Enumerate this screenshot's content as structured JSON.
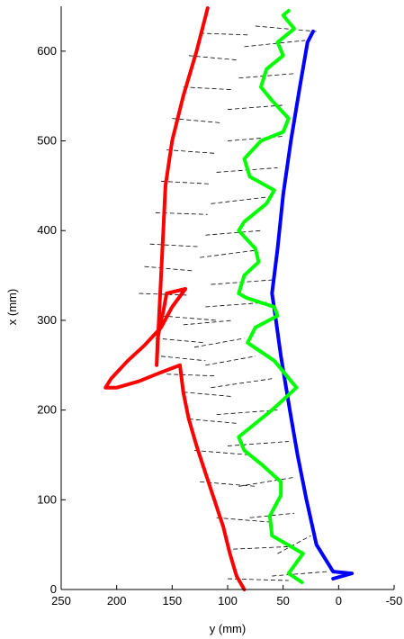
{
  "chart_data": {
    "type": "line",
    "title": "",
    "xlabel": "y (mm)",
    "ylabel": "x (mm)",
    "xlim": [
      250,
      -50
    ],
    "ylim": [
      0,
      650
    ],
    "x_reversed": true,
    "grid": false,
    "legend": "none",
    "xticks": [
      250,
      200,
      150,
      100,
      50,
      0,
      -50
    ],
    "yticks": [
      0,
      100,
      200,
      300,
      400,
      500,
      600
    ],
    "series": [
      {
        "color": "#ff0000",
        "points": [
          [
            85,
            0
          ],
          [
            92,
            15
          ],
          [
            98,
            40
          ],
          [
            104,
            70
          ],
          [
            112,
            100
          ],
          [
            120,
            130
          ],
          [
            128,
            160
          ],
          [
            135,
            190
          ],
          [
            140,
            220
          ],
          [
            143,
            250
          ],
          [
            160,
            242
          ],
          [
            180,
            232
          ],
          [
            200,
            225
          ],
          [
            210,
            225
          ],
          [
            205,
            235
          ],
          [
            190,
            255
          ],
          [
            175,
            272
          ],
          [
            160,
            292
          ],
          [
            150,
            315
          ],
          [
            138,
            335
          ],
          [
            155,
            330
          ],
          [
            158,
            310
          ],
          [
            160,
            300
          ],
          [
            163,
            280
          ],
          [
            164,
            250
          ],
          [
            158,
            400
          ],
          [
            156,
            450
          ],
          [
            150,
            500
          ],
          [
            140,
            550
          ],
          [
            128,
            600
          ],
          [
            118,
            648
          ]
        ]
      },
      {
        "color": "#0000ff",
        "points": [
          [
            5,
            12
          ],
          [
            -12,
            18
          ],
          [
            5,
            20
          ],
          [
            20,
            50
          ],
          [
            29,
            100
          ],
          [
            37,
            150
          ],
          [
            44,
            200
          ],
          [
            52,
            260
          ],
          [
            57,
            305
          ],
          [
            60,
            330
          ],
          [
            55,
            380
          ],
          [
            50,
            440
          ],
          [
            43,
            500
          ],
          [
            35,
            560
          ],
          [
            28,
            610
          ],
          [
            23,
            622
          ]
        ]
      },
      {
        "color": "#00ff00",
        "points": [
          [
            33,
            8
          ],
          [
            45,
            18
          ],
          [
            38,
            30
          ],
          [
            32,
            40
          ],
          [
            60,
            60
          ],
          [
            62,
            82
          ],
          [
            52,
            105
          ],
          [
            52,
            120
          ],
          [
            70,
            140
          ],
          [
            85,
            155
          ],
          [
            90,
            170
          ],
          [
            60,
            200
          ],
          [
            38,
            225
          ],
          [
            58,
            255
          ],
          [
            82,
            275
          ],
          [
            75,
            292
          ],
          [
            55,
            305
          ],
          [
            58,
            315
          ],
          [
            83,
            325
          ],
          [
            90,
            330
          ],
          [
            85,
            350
          ],
          [
            72,
            365
          ],
          [
            75,
            380
          ],
          [
            90,
            400
          ],
          [
            85,
            410
          ],
          [
            65,
            430
          ],
          [
            58,
            445
          ],
          [
            80,
            460
          ],
          [
            85,
            480
          ],
          [
            70,
            500
          ],
          [
            50,
            510
          ],
          [
            45,
            525
          ],
          [
            60,
            545
          ],
          [
            70,
            560
          ],
          [
            65,
            580
          ],
          [
            50,
            595
          ],
          [
            55,
            610
          ],
          [
            40,
            625
          ],
          [
            50,
            640
          ],
          [
            45,
            645
          ]
        ]
      }
    ],
    "dashed_segments": [
      [
        [
          100,
          12
        ],
        [
          45,
          10
        ]
      ],
      [
        [
          60,
          15
        ],
        [
          10,
          20
        ]
      ],
      [
        [
          95,
          45
        ],
        [
          40,
          48
        ]
      ],
      [
        [
          55,
          40
        ],
        [
          25,
          60
        ]
      ],
      [
        [
          110,
          80
        ],
        [
          60,
          75
        ]
      ],
      [
        [
          80,
          80
        ],
        [
          40,
          85
        ]
      ],
      [
        [
          125,
          120
        ],
        [
          75,
          115
        ]
      ],
      [
        [
          90,
          115
        ],
        [
          40,
          125
        ]
      ],
      [
        [
          130,
          155
        ],
        [
          80,
          150
        ]
      ],
      [
        [
          100,
          160
        ],
        [
          45,
          165
        ]
      ],
      [
        [
          135,
          190
        ],
        [
          90,
          185
        ]
      ],
      [
        [
          110,
          195
        ],
        [
          55,
          200
        ]
      ],
      [
        [
          140,
          220
        ],
        [
          95,
          215
        ]
      ],
      [
        [
          115,
          225
        ],
        [
          60,
          235
        ]
      ],
      [
        [
          155,
          240
        ],
        [
          110,
          238
        ]
      ],
      [
        [
          120,
          250
        ],
        [
          75,
          260
        ]
      ],
      [
        [
          160,
          260
        ],
        [
          120,
          255
        ]
      ],
      [
        [
          130,
          270
        ],
        [
          85,
          280
        ]
      ],
      [
        [
          165,
          280
        ],
        [
          120,
          275
        ]
      ],
      [
        [
          140,
          295
        ],
        [
          95,
          300
        ]
      ],
      [
        [
          160,
          305
        ],
        [
          110,
          300
        ]
      ],
      [
        [
          120,
          315
        ],
        [
          65,
          320
        ]
      ],
      [
        [
          180,
          330
        ],
        [
          135,
          328
        ]
      ],
      [
        [
          115,
          340
        ],
        [
          60,
          345
        ]
      ],
      [
        [
          175,
          360
        ],
        [
          130,
          355
        ]
      ],
      [
        [
          125,
          370
        ],
        [
          75,
          378
        ]
      ],
      [
        [
          170,
          385
        ],
        [
          125,
          382
        ]
      ],
      [
        [
          120,
          395
        ],
        [
          70,
          400
        ]
      ],
      [
        [
          165,
          420
        ],
        [
          118,
          418
        ]
      ],
      [
        [
          115,
          430
        ],
        [
          60,
          438
        ]
      ],
      [
        [
          160,
          455
        ],
        [
          115,
          452
        ]
      ],
      [
        [
          110,
          465
        ],
        [
          55,
          470
        ]
      ],
      [
        [
          155,
          490
        ],
        [
          110,
          486
        ]
      ],
      [
        [
          100,
          500
        ],
        [
          50,
          505
        ]
      ],
      [
        [
          150,
          525
        ],
        [
          105,
          520
        ]
      ],
      [
        [
          100,
          535
        ],
        [
          48,
          540
        ]
      ],
      [
        [
          140,
          560
        ],
        [
          95,
          557
        ]
      ],
      [
        [
          90,
          570
        ],
        [
          40,
          575
        ]
      ],
      [
        [
          135,
          595
        ],
        [
          90,
          590
        ]
      ],
      [
        [
          85,
          605
        ],
        [
          30,
          612
        ]
      ],
      [
        [
          125,
          620
        ],
        [
          80,
          618
        ]
      ],
      [
        [
          75,
          628
        ],
        [
          20,
          622
        ]
      ]
    ]
  }
}
